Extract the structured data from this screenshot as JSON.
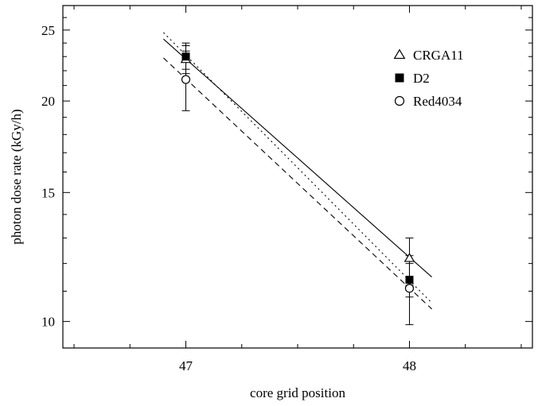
{
  "chart_data": {
    "type": "scatter",
    "xlabel": "core grid position",
    "ylabel": "photon dose rate (kGy/h)",
    "xlim": [
      46.45,
      48.55
    ],
    "ylim": [
      9.2,
      27.0
    ],
    "y_scale": "log",
    "x_ticks": [
      47,
      48
    ],
    "x_tick_labels": [
      "47",
      "48"
    ],
    "y_ticks": [
      10,
      15,
      20,
      25
    ],
    "y_tick_labels": [
      "10",
      "15",
      "20",
      "25"
    ],
    "legend_position": "top-right",
    "grid": false,
    "series": [
      {
        "name": "CRGA11",
        "marker": "open-triangle",
        "line_style": "solid",
        "points": [
          {
            "x": 47,
            "y": 22.8,
            "err_low": 1.0,
            "err_high": 1.0
          },
          {
            "x": 48,
            "y": 12.2,
            "err_low": 1.0,
            "err_high": 0.8
          }
        ],
        "fit": {
          "x": [
            46.9,
            48.1
          ],
          "y": [
            24.3,
            11.5
          ]
        }
      },
      {
        "name": "D2",
        "marker": "filled-square",
        "line_style": "dotted",
        "points": [
          {
            "x": 47,
            "y": 23.0,
            "err_low": 0.9,
            "err_high": 1.0
          },
          {
            "x": 48,
            "y": 11.4,
            "err_low": 0.6,
            "err_high": 0.6
          }
        ],
        "fit": {
          "x": [
            46.9,
            48.1
          ],
          "y": [
            24.8,
            10.6
          ]
        }
      },
      {
        "name": "Red4034",
        "marker": "open-circle",
        "line_style": "dashed",
        "points": [
          {
            "x": 47,
            "y": 21.4,
            "err_low": 2.0,
            "err_high": 2.0
          },
          {
            "x": 48,
            "y": 11.1,
            "err_low": 1.2,
            "err_high": 1.2
          }
        ],
        "fit": {
          "x": [
            46.9,
            48.1
          ],
          "y": [
            22.9,
            10.4
          ]
        }
      }
    ]
  }
}
